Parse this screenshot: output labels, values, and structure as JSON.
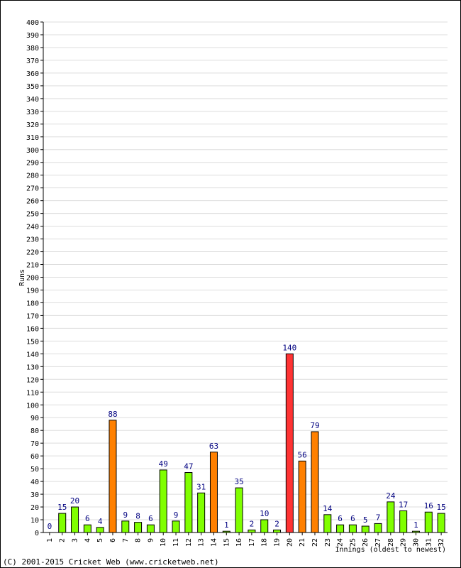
{
  "chart_data": {
    "type": "bar",
    "ylabel": "Runs",
    "xlabel": "Innings (oldest to newest)",
    "ylim": [
      0,
      400
    ],
    "ytick_step": 10,
    "grid": true,
    "categories": [
      "1",
      "2",
      "3",
      "4",
      "5",
      "6",
      "7",
      "8",
      "9",
      "10",
      "11",
      "12",
      "13",
      "14",
      "15",
      "16",
      "17",
      "18",
      "19",
      "20",
      "21",
      "22",
      "23",
      "24",
      "25",
      "26",
      "27",
      "28",
      "29",
      "30",
      "31",
      "32"
    ],
    "values": [
      0,
      15,
      20,
      6,
      4,
      88,
      9,
      8,
      6,
      49,
      9,
      47,
      31,
      63,
      1,
      35,
      2,
      10,
      2,
      140,
      56,
      79,
      14,
      6,
      6,
      5,
      7,
      24,
      17,
      1,
      16,
      15
    ],
    "bar_colors": {
      "under_50": "#80ff00",
      "fifty": "#ff8000",
      "hundred": "#ff3333"
    },
    "label_color": "#000080"
  },
  "footer": {
    "copyright": "(C) 2001-2015 Cricket Web (www.cricketweb.net)"
  }
}
